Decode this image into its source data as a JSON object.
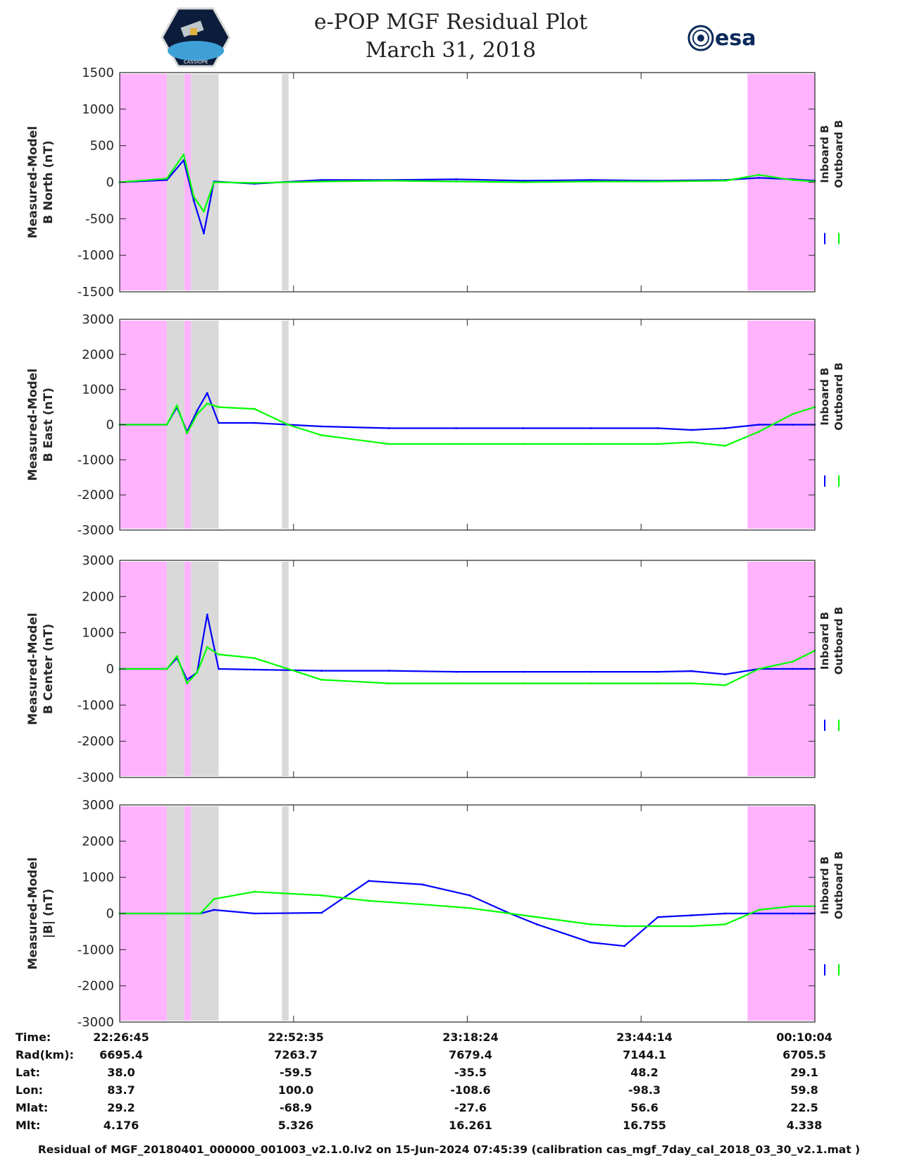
{
  "header": {
    "title_line1": "e-POP MGF Residual Plot",
    "title_line2": "March 31, 2018",
    "left_logo_text": "CASSIOPE",
    "right_logo_text": "esa"
  },
  "colors": {
    "inboard": "#0000ff",
    "outboard": "#00ff00",
    "shade_magenta": "#ffb3ff",
    "shade_gray": "#d9d9d9"
  },
  "chart_data": [
    {
      "type": "line",
      "ylabel_line1": "Measured-Model",
      "ylabel_line2": "B North (nT)",
      "ylim": [
        -1500,
        1500
      ],
      "yticks": [
        1500,
        1000,
        500,
        0,
        -500,
        -1000,
        -1500
      ],
      "x_ticks_minutes": [
        0,
        25.833,
        51.65,
        77.483,
        103.317
      ],
      "xlim_minutes": [
        0,
        103.317
      ],
      "legend": [
        "Inboard B",
        "Outboard B"
      ],
      "shaded_regions_minutes": [
        [
          0,
          7,
          "magenta"
        ],
        [
          7,
          9.6,
          "gray"
        ],
        [
          9.6,
          10.6,
          "magenta"
        ],
        [
          10.6,
          14.7,
          "gray"
        ],
        [
          24.1,
          25.1,
          "gray"
        ],
        [
          93.3,
          103.317,
          "magenta"
        ]
      ],
      "series": [
        {
          "name": "Inboard B",
          "x": [
            0,
            7,
            9.5,
            11,
            12.5,
            14,
            20,
            30,
            40,
            50,
            60,
            70,
            80,
            90,
            95,
            100,
            103.3
          ],
          "y": [
            0,
            30,
            300,
            -250,
            -700,
            10,
            -20,
            30,
            30,
            40,
            20,
            30,
            20,
            30,
            60,
            40,
            20
          ]
        },
        {
          "name": "Outboard B",
          "x": [
            0,
            7,
            9.5,
            11,
            12.5,
            14,
            20,
            30,
            40,
            50,
            60,
            70,
            80,
            90,
            95,
            100,
            103.3
          ],
          "y": [
            0,
            50,
            380,
            -200,
            -400,
            0,
            -10,
            10,
            20,
            10,
            0,
            10,
            10,
            20,
            100,
            30,
            10
          ]
        }
      ]
    },
    {
      "type": "line",
      "ylabel_line1": "Measured-Model",
      "ylabel_line2": "B East (nT)",
      "ylim": [
        -3000,
        3000
      ],
      "yticks": [
        3000,
        2000,
        1000,
        0,
        -1000,
        -2000,
        -3000
      ],
      "x_ticks_minutes": [
        0,
        25.833,
        51.65,
        77.483,
        103.317
      ],
      "xlim_minutes": [
        0,
        103.317
      ],
      "legend": [
        "Inboard B",
        "Outboard B"
      ],
      "shaded_regions_minutes": [
        [
          0,
          7,
          "magenta"
        ],
        [
          7,
          9.6,
          "gray"
        ],
        [
          9.6,
          10.6,
          "magenta"
        ],
        [
          10.6,
          14.7,
          "gray"
        ],
        [
          24.1,
          25.1,
          "gray"
        ],
        [
          93.3,
          103.317,
          "magenta"
        ]
      ],
      "series": [
        {
          "name": "Inboard B",
          "x": [
            0,
            7,
            8.5,
            10,
            11.5,
            13,
            14.7,
            20,
            25,
            30,
            40,
            50,
            60,
            70,
            80,
            85,
            90,
            95,
            100,
            103.3
          ],
          "y": [
            0,
            0,
            500,
            -200,
            400,
            900,
            50,
            50,
            0,
            -50,
            -100,
            -100,
            -100,
            -100,
            -100,
            -150,
            -100,
            0,
            0,
            0
          ]
        },
        {
          "name": "Outboard B",
          "x": [
            0,
            7,
            8.5,
            10,
            11.5,
            13,
            14.7,
            20,
            25,
            30,
            40,
            50,
            60,
            70,
            80,
            85,
            90,
            95,
            100,
            103.3
          ],
          "y": [
            0,
            0,
            550,
            -250,
            300,
            600,
            500,
            450,
            0,
            -300,
            -550,
            -550,
            -550,
            -550,
            -550,
            -500,
            -600,
            -200,
            300,
            500
          ]
        }
      ]
    },
    {
      "type": "line",
      "ylabel_line1": "Measured-Model",
      "ylabel_line2": "B Center (nT)",
      "ylim": [
        -3000,
        3000
      ],
      "yticks": [
        3000,
        2000,
        1000,
        0,
        -1000,
        -2000,
        -3000
      ],
      "x_ticks_minutes": [
        0,
        25.833,
        51.65,
        77.483,
        103.317
      ],
      "xlim_minutes": [
        0,
        103.317
      ],
      "legend": [
        "Inboard B",
        "Outboard B"
      ],
      "shaded_regions_minutes": [
        [
          0,
          7,
          "magenta"
        ],
        [
          7,
          9.6,
          "gray"
        ],
        [
          9.6,
          10.6,
          "magenta"
        ],
        [
          10.6,
          14.7,
          "gray"
        ],
        [
          24.1,
          25.1,
          "gray"
        ],
        [
          93.3,
          103.317,
          "magenta"
        ]
      ],
      "series": [
        {
          "name": "Inboard B",
          "x": [
            0,
            7,
            8.5,
            10,
            11.5,
            13,
            14.7,
            20,
            30,
            40,
            50,
            60,
            70,
            80,
            85,
            90,
            95,
            100,
            103.3
          ],
          "y": [
            0,
            0,
            300,
            -300,
            -100,
            1500,
            0,
            -20,
            -50,
            -50,
            -80,
            -80,
            -80,
            -80,
            -60,
            -150,
            0,
            0,
            0
          ]
        },
        {
          "name": "Outboard B",
          "x": [
            0,
            7,
            8.5,
            10,
            11.5,
            13,
            14.7,
            20,
            30,
            40,
            50,
            60,
            70,
            80,
            85,
            90,
            95,
            100,
            103.3
          ],
          "y": [
            0,
            0,
            350,
            -400,
            -100,
            600,
            400,
            300,
            -300,
            -400,
            -400,
            -400,
            -400,
            -400,
            -400,
            -450,
            0,
            200,
            500
          ]
        }
      ]
    },
    {
      "type": "line",
      "ylabel_line1": "Measured-Model",
      "ylabel_line2": "|B| (nT)",
      "ylim": [
        -3000,
        3000
      ],
      "yticks": [
        3000,
        2000,
        1000,
        0,
        -1000,
        -2000,
        -3000
      ],
      "x_ticks_minutes": [
        0,
        25.833,
        51.65,
        77.483,
        103.317
      ],
      "xlim_minutes": [
        0,
        103.317
      ],
      "legend": [
        "Inboard B",
        "Outboard B"
      ],
      "shaded_regions_minutes": [
        [
          0,
          7,
          "magenta"
        ],
        [
          7,
          9.6,
          "gray"
        ],
        [
          9.6,
          10.6,
          "magenta"
        ],
        [
          10.6,
          14.7,
          "gray"
        ],
        [
          24.1,
          25.1,
          "gray"
        ],
        [
          93.3,
          103.317,
          "magenta"
        ]
      ],
      "series": [
        {
          "name": "Inboard B",
          "x": [
            0,
            7,
            10,
            12,
            14,
            20,
            30,
            37,
            45,
            52,
            58,
            62,
            70,
            75,
            80,
            85,
            90,
            95,
            100,
            103.3
          ],
          "y": [
            0,
            0,
            0,
            0,
            100,
            0,
            20,
            900,
            800,
            500,
            0,
            -300,
            -800,
            -900,
            -100,
            -50,
            0,
            0,
            0,
            0
          ]
        },
        {
          "name": "Outboard B",
          "x": [
            0,
            7,
            10,
            12,
            14,
            20,
            30,
            37,
            45,
            52,
            58,
            62,
            70,
            75,
            80,
            85,
            90,
            95,
            100,
            103.3
          ],
          "y": [
            0,
            0,
            0,
            0,
            400,
            600,
            500,
            350,
            250,
            150,
            0,
            -100,
            -300,
            -350,
            -350,
            -350,
            -300,
            100,
            200,
            200
          ]
        }
      ]
    }
  ],
  "info_table": {
    "labels": [
      "Time:",
      "Rad(km):",
      "Lat:",
      "Lon:",
      "Mlat:",
      "Mlt:"
    ],
    "columns": [
      [
        "22:26:45",
        "6695.4",
        "38.0",
        "83.7",
        "29.2",
        "4.176"
      ],
      [
        "22:52:35",
        "7263.7",
        "-59.5",
        "100.0",
        "-68.9",
        "5.326"
      ],
      [
        "23:18:24",
        "7679.4",
        "-35.5",
        "-108.6",
        "-27.6",
        "16.261"
      ],
      [
        "23:44:14",
        "7144.1",
        "48.2",
        "-98.3",
        "56.6",
        "16.755"
      ],
      [
        "00:10:04",
        "6705.5",
        "29.1",
        "59.8",
        "22.5",
        "4.338"
      ]
    ]
  },
  "footer": {
    "text": "Residual of MGF_20180401_000000_001003_v2.1.0.lv2 on 15-Jun-2024 07:45:39 (calibration cas_mgf_7day_cal_2018_03_30_v2.1.mat )"
  }
}
